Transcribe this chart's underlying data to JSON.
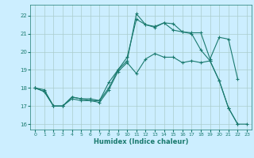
{
  "xlabel": "Humidex (Indice chaleur)",
  "xlim": [
    -0.5,
    23.5
  ],
  "ylim": [
    15.7,
    22.6
  ],
  "yticks": [
    16,
    17,
    18,
    19,
    20,
    21,
    22
  ],
  "xticks": [
    0,
    1,
    2,
    3,
    4,
    5,
    6,
    7,
    8,
    9,
    10,
    11,
    12,
    13,
    14,
    15,
    16,
    17,
    18,
    19,
    20,
    21,
    22,
    23
  ],
  "bg_color": "#cceeff",
  "grid_color": "#aacccc",
  "line_color": "#1a7a6e",
  "line_width": 0.8,
  "marker": "+",
  "marker_size": 3,
  "series": [
    [
      18.0,
      17.9,
      17.0,
      17.0,
      17.5,
      17.4,
      17.4,
      17.3,
      18.3,
      19.0,
      19.5,
      22.1,
      21.5,
      21.4,
      21.6,
      21.55,
      21.1,
      21.05,
      21.05,
      19.6,
      20.8,
      20.7,
      18.5,
      null
    ],
    [
      18.0,
      17.8,
      17.0,
      17.0,
      17.5,
      17.4,
      17.3,
      17.3,
      18.0,
      19.0,
      19.7,
      21.8,
      21.5,
      21.35,
      21.6,
      21.2,
      21.1,
      21.0,
      20.1,
      19.5,
      18.4,
      16.9,
      16.0,
      null
    ],
    [
      18.0,
      17.8,
      17.0,
      17.0,
      17.4,
      17.3,
      17.3,
      17.2,
      17.9,
      18.9,
      19.4,
      18.8,
      19.6,
      19.9,
      19.7,
      19.7,
      19.4,
      19.5,
      19.4,
      19.5,
      18.4,
      16.9,
      16.0,
      16.0
    ]
  ],
  "x_values": [
    0,
    1,
    2,
    3,
    4,
    5,
    6,
    7,
    8,
    9,
    10,
    11,
    12,
    13,
    14,
    15,
    16,
    17,
    18,
    19,
    20,
    21,
    22,
    23
  ]
}
